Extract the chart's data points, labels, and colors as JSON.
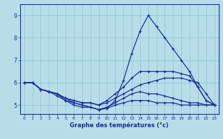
{
  "title": "Graphe des températures (°c)",
  "bg_color": "#b8dde8",
  "grid_color": "#90c8d8",
  "line_color": "#1a2d9a",
  "xlim": [
    -0.5,
    23.5
  ],
  "ylim": [
    4.6,
    9.5
  ],
  "xticks": [
    0,
    1,
    2,
    3,
    4,
    5,
    6,
    7,
    8,
    9,
    10,
    11,
    12,
    13,
    14,
    15,
    16,
    17,
    18,
    19,
    20,
    21,
    22,
    23
  ],
  "yticks": [
    5,
    6,
    7,
    8,
    9
  ],
  "lines": [
    {
      "x": [
        0,
        1,
        2,
        3,
        4,
        5,
        6,
        7,
        8,
        9,
        10,
        11,
        12,
        13,
        14,
        15,
        16,
        17,
        18,
        19,
        20,
        21,
        22,
        23
      ],
      "y": [
        6.0,
        6.0,
        5.7,
        5.6,
        5.5,
        5.2,
        5.0,
        4.9,
        4.9,
        4.8,
        4.85,
        5.0,
        5.1,
        5.2,
        5.2,
        5.2,
        5.1,
        5.1,
        5.1,
        5.0,
        5.0,
        5.0,
        5.0,
        5.0
      ]
    },
    {
      "x": [
        0,
        1,
        2,
        3,
        4,
        5,
        6,
        7,
        8,
        9,
        10,
        11,
        12,
        13,
        14,
        15,
        16,
        17,
        18,
        19,
        20,
        21,
        22,
        23
      ],
      "y": [
        6.0,
        6.0,
        5.7,
        5.6,
        5.4,
        5.2,
        5.1,
        5.0,
        4.9,
        4.8,
        4.9,
        5.1,
        5.3,
        5.5,
        5.6,
        5.5,
        5.5,
        5.4,
        5.3,
        5.2,
        5.1,
        5.1,
        5.0,
        5.0
      ]
    },
    {
      "x": [
        0,
        1,
        2,
        3,
        4,
        5,
        6,
        7,
        8,
        9,
        10,
        11,
        12,
        13,
        14,
        15,
        16,
        17,
        18,
        19,
        20,
        21,
        22,
        23
      ],
      "y": [
        6.0,
        6.0,
        5.7,
        5.6,
        5.5,
        5.3,
        5.2,
        5.1,
        5.1,
        5.0,
        5.1,
        5.3,
        5.5,
        5.7,
        5.9,
        6.0,
        6.1,
        6.2,
        6.2,
        6.2,
        6.1,
        6.0,
        5.5,
        5.0
      ]
    },
    {
      "x": [
        0,
        1,
        2,
        3,
        4,
        5,
        6,
        7,
        8,
        9,
        10,
        11,
        12,
        13,
        14,
        15,
        16,
        17,
        18,
        19,
        20,
        21,
        22,
        23
      ],
      "y": [
        6.0,
        6.0,
        5.7,
        5.6,
        5.5,
        5.3,
        5.2,
        5.1,
        5.1,
        5.0,
        5.2,
        5.5,
        5.8,
        6.2,
        6.5,
        6.5,
        6.5,
        6.5,
        6.5,
        6.4,
        6.3,
        5.8,
        5.2,
        5.0
      ]
    },
    {
      "x": [
        0,
        1,
        2,
        3,
        4,
        5,
        6,
        7,
        8,
        9,
        10,
        11,
        12,
        13,
        14,
        15,
        16,
        17,
        18,
        19,
        20,
        21,
        22,
        23
      ],
      "y": [
        6.0,
        6.0,
        5.7,
        5.6,
        5.5,
        5.3,
        5.1,
        5.0,
        4.9,
        4.8,
        4.85,
        5.2,
        6.1,
        7.3,
        8.3,
        9.0,
        8.5,
        8.0,
        7.5,
        7.0,
        6.5,
        5.8,
        5.2,
        5.0
      ]
    }
  ]
}
